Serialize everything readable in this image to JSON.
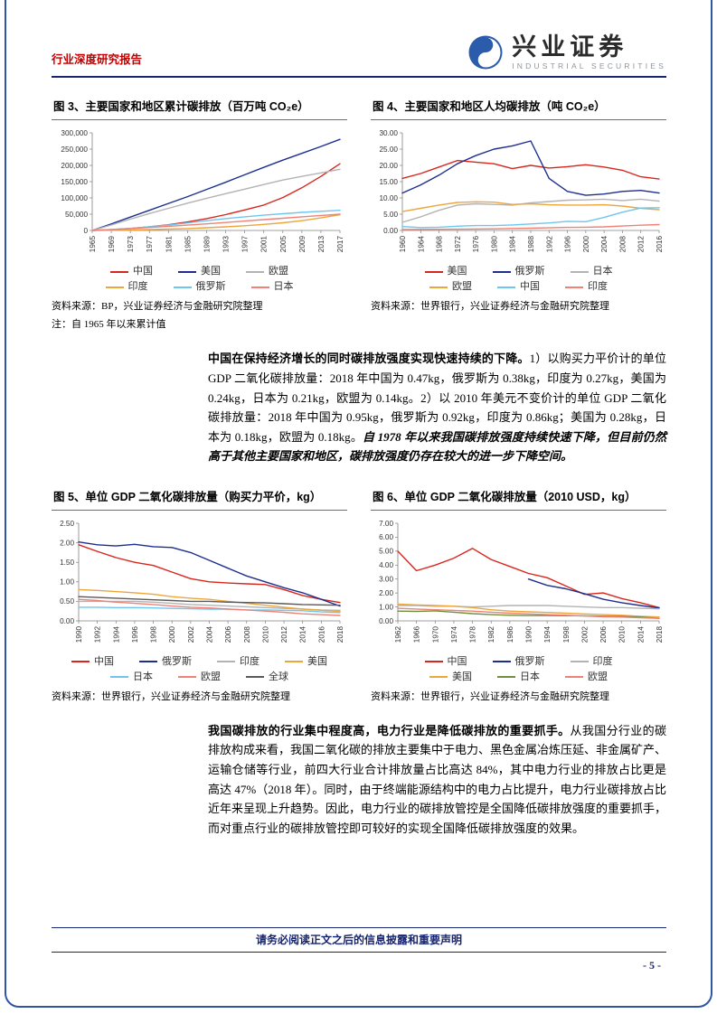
{
  "header": {
    "report_type": "行业深度研究报告",
    "brand_cn": "兴业证券",
    "brand_en": "INDUSTRIAL SECURITIES"
  },
  "colors": {
    "accent_red": "#c00000",
    "navy": "#17246e",
    "page_border_blue": "#2f55a4"
  },
  "paragraphs": [
    {
      "segments": [
        {
          "text": "中国在保持经济增长的同时碳排放强度实现快速持续的下降。",
          "bold": true
        },
        {
          "text": "1）以购买力平价计的单位 GDP 二氧化碳排放量：2018 年中国为 0.47kg，俄罗斯为 0.38kg，印度为 0.27kg，美国为 0.24kg，日本为 0.21kg，欧盟为 0.14kg。2）以 2010 年美元不变价计的单位 GDP 二氧化碳排放量：2018 年中国为 0.95kg，俄罗斯为 0.92kg，印度为 0.86kg；美国为 0.28kg，日本为 0.18kg，欧盟为 0.18kg。",
          "bold": false
        },
        {
          "text": "自 1978 年以来我国碳排放强度持续快速下降，但目前仍然高于其他主要国家和地区，碳排放强度仍存在较大的进一步下降空间。",
          "bold": true,
          "italic": true
        }
      ]
    },
    {
      "segments": [
        {
          "text": "我国碳排放的行业集中程度高，电力行业是降低碳排放的重要抓手。",
          "bold": true
        },
        {
          "text": "从我国分行业的碳排放构成来看，我国二氧化碳的排放主要集中于电力、黑色金属冶炼压延、非金属矿产、运输仓储等行业，前四大行业合计排放量占比高达 84%，其中电力行业的排放占比更是高达 47%（2018 年）。同时，由于终端能源结构中的电力占比提升，电力行业碳排放占比近年来呈现上升趋势。因此，电力行业的碳排放管控是全国降低碳排放强度的重要抓手，而对重点行业的碳排放管控即可较好的实现全国降低碳排放强度的效果。",
          "bold": false
        }
      ]
    }
  ],
  "footer": {
    "disclaimer": "请务必阅读正文之后的信息披露和重要声明",
    "page_number": "- 5 -"
  },
  "chart_data": [
    {
      "type": "line",
      "title": "图 3、主要国家和地区累计碳排放（百万吨 CO₂e）",
      "source": "资料来源：BP，兴业证券经济与金融研究院整理",
      "note": "注：自 1965 年以来累计值",
      "x_ticks": [
        "1965",
        "1969",
        "1973",
        "1977",
        "1981",
        "1985",
        "1989",
        "1993",
        "1997",
        "2001",
        "2005",
        "2009",
        "2013",
        "2017"
      ],
      "ylim": [
        0,
        300000
      ],
      "yticks": [
        0,
        50000,
        100000,
        150000,
        200000,
        250000,
        300000
      ],
      "ytick_format": "comma",
      "series": [
        {
          "name": "中国",
          "color": "#d9261c",
          "values": [
            0,
            2500,
            6000,
            11000,
            17500,
            26000,
            36500,
            48500,
            63000,
            78000,
            101000,
            131000,
            166000,
            205000
          ]
        },
        {
          "name": "美国",
          "color": "#1d2f8e",
          "values": [
            0,
            20000,
            41000,
            62000,
            83000,
            104000,
            126000,
            148000,
            171000,
            194000,
            216000,
            237000,
            258000,
            280000
          ]
        },
        {
          "name": "欧盟",
          "color": "#b3b3b3",
          "values": [
            0,
            17000,
            35000,
            52000,
            68000,
            84000,
            99000,
            113000,
            127000,
            141000,
            155000,
            166000,
            177000,
            188000
          ]
        },
        {
          "name": "印度",
          "color": "#eda63c",
          "values": [
            0,
            700,
            1600,
            2700,
            4100,
            5900,
            8200,
            11000,
            14500,
            18500,
            23500,
            30000,
            38500,
            48500
          ]
        },
        {
          "name": "俄罗斯",
          "color": "#6ec6f0",
          "values": [
            0,
            2800,
            6500,
            11000,
            16500,
            23000,
            30000,
            36500,
            42000,
            47000,
            51500,
            55500,
            59000,
            62000
          ]
        },
        {
          "name": "日本",
          "color": "#ee8276",
          "values": [
            0,
            2600,
            5800,
            9200,
            12800,
            16400,
            20200,
            24400,
            28800,
            33200,
            37600,
            42000,
            46200,
            50000
          ]
        }
      ],
      "legend_rows": [
        [
          "中国",
          "美国",
          "欧盟"
        ],
        [
          "印度",
          "俄罗斯",
          "日本"
        ]
      ]
    },
    {
      "type": "line",
      "title": "图 4、主要国家和地区人均碳排放（吨 CO₂e）",
      "source": "资料来源：世界银行，兴业证券经济与金融研究院整理",
      "x_ticks": [
        "1960",
        "1964",
        "1968",
        "1972",
        "1976",
        "1980",
        "1984",
        "1988",
        "1992",
        "1996",
        "2000",
        "2004",
        "2008",
        "2012",
        "2016"
      ],
      "ylim": [
        0,
        30
      ],
      "yticks": [
        0,
        5,
        10,
        15,
        20,
        25,
        30
      ],
      "ytick_format": "2dp",
      "series": [
        {
          "name": "美国",
          "color": "#d9261c",
          "values": [
            16,
            17.5,
            19.5,
            21.5,
            21,
            20.5,
            19,
            20,
            19.2,
            19.6,
            20.2,
            19.5,
            18.5,
            16.5,
            15.8
          ]
        },
        {
          "name": "俄罗斯",
          "color": "#1d2f8e",
          "values": [
            11.5,
            14,
            17,
            20.5,
            23,
            25,
            26,
            27.5,
            16,
            12,
            10.8,
            11.2,
            12,
            12.3,
            11.5
          ]
        },
        {
          "name": "日本",
          "color": "#b3b3b3",
          "values": [
            2.5,
            4.2,
            6.2,
            7.8,
            8.2,
            8.0,
            7.8,
            8.5,
            8.9,
            9.3,
            9.4,
            9.6,
            9.2,
            9.6,
            9.0
          ]
        },
        {
          "name": "欧盟",
          "color": "#eda63c",
          "values": [
            5.8,
            6.8,
            7.8,
            8.6,
            8.8,
            8.7,
            8.0,
            8.2,
            7.9,
            7.8,
            7.8,
            7.9,
            7.5,
            6.8,
            6.4
          ]
        },
        {
          "name": "中国",
          "color": "#6ec6f0",
          "values": [
            1.2,
            0.9,
            1.0,
            1.3,
            1.5,
            1.5,
            1.7,
            2.0,
            2.3,
            2.8,
            2.7,
            4.0,
            5.6,
            6.9,
            7.0
          ]
        },
        {
          "name": "印度",
          "color": "#ee8276",
          "values": [
            0.3,
            0.32,
            0.35,
            0.4,
            0.45,
            0.5,
            0.6,
            0.7,
            0.8,
            0.95,
            1.0,
            1.1,
            1.35,
            1.6,
            1.8
          ]
        }
      ],
      "legend_rows": [
        [
          "美国",
          "俄罗斯",
          "日本"
        ],
        [
          "欧盟",
          "中国",
          "印度"
        ]
      ]
    },
    {
      "type": "line",
      "title": "图 5、单位 GDP 二氧化碳排放量（购买力平价，kg）",
      "source": "资料来源：世界银行，兴业证券经济与金融研究院整理",
      "x_ticks": [
        "1990",
        "1992",
        "1994",
        "1996",
        "1998",
        "2000",
        "2002",
        "2004",
        "2006",
        "2008",
        "2010",
        "2012",
        "2014",
        "2016",
        "2018"
      ],
      "ylim": [
        0,
        2.5
      ],
      "yticks": [
        0,
        0.5,
        1.0,
        1.5,
        2.0,
        2.5
      ],
      "ytick_format": "2dp",
      "series": [
        {
          "name": "中国",
          "color": "#d9261c",
          "values": [
            1.95,
            1.78,
            1.62,
            1.5,
            1.42,
            1.25,
            1.08,
            1.0,
            0.97,
            0.95,
            0.93,
            0.8,
            0.65,
            0.55,
            0.47
          ]
        },
        {
          "name": "俄罗斯",
          "color": "#1d2f8e",
          "values": [
            2.02,
            1.95,
            1.92,
            1.96,
            1.9,
            1.88,
            1.75,
            1.55,
            1.35,
            1.15,
            1.0,
            0.85,
            0.72,
            0.55,
            0.38
          ]
        },
        {
          "name": "印度",
          "color": "#b3b3b3",
          "values": [
            0.5,
            0.5,
            0.5,
            0.5,
            0.48,
            0.45,
            0.42,
            0.4,
            0.38,
            0.36,
            0.34,
            0.32,
            0.3,
            0.28,
            0.27
          ]
        },
        {
          "name": "美国",
          "color": "#eda63c",
          "values": [
            0.8,
            0.78,
            0.75,
            0.72,
            0.68,
            0.62,
            0.58,
            0.55,
            0.5,
            0.45,
            0.4,
            0.35,
            0.3,
            0.27,
            0.24
          ]
        },
        {
          "name": "日本",
          "color": "#6ec6f0",
          "values": [
            0.35,
            0.35,
            0.34,
            0.34,
            0.33,
            0.32,
            0.31,
            0.3,
            0.3,
            0.28,
            0.28,
            0.27,
            0.26,
            0.23,
            0.21
          ]
        },
        {
          "name": "欧盟",
          "color": "#ee8276",
          "values": [
            0.55,
            0.52,
            0.48,
            0.45,
            0.42,
            0.38,
            0.35,
            0.33,
            0.3,
            0.28,
            0.25,
            0.22,
            0.18,
            0.16,
            0.14
          ]
        },
        {
          "name": "全球",
          "color": "#595959",
          "values": [
            0.62,
            0.6,
            0.58,
            0.56,
            0.54,
            0.52,
            0.5,
            0.5,
            0.48,
            0.47,
            0.46,
            0.44,
            0.42,
            0.41,
            0.4
          ]
        }
      ],
      "legend_rows": [
        [
          "中国",
          "俄罗斯",
          "印度",
          "美国"
        ],
        [
          "日本",
          "欧盟",
          "全球"
        ]
      ]
    },
    {
      "type": "line",
      "title": "图 6、单位 GDP 二氧化碳排放量（2010 USD，kg）",
      "source": "资料来源：世界银行，兴业证券经济与金融研究院整理",
      "x_ticks": [
        "1962",
        "1966",
        "1970",
        "1974",
        "1978",
        "1982",
        "1986",
        "1990",
        "1994",
        "1998",
        "2002",
        "2006",
        "2010",
        "2014",
        "2018"
      ],
      "ylim": [
        0,
        7
      ],
      "yticks": [
        0,
        1,
        2,
        3,
        4,
        5,
        6,
        7
      ],
      "ytick_format": "2dp",
      "series": [
        {
          "name": "中国",
          "color": "#d9261c",
          "values": [
            5.0,
            3.6,
            4.0,
            4.5,
            5.2,
            4.4,
            3.9,
            3.4,
            3.1,
            2.5,
            1.9,
            2.0,
            1.6,
            1.3,
            0.95
          ]
        },
        {
          "name": "俄罗斯",
          "color": "#1d2f8e",
          "values": [
            null,
            null,
            null,
            null,
            null,
            null,
            null,
            3.0,
            2.55,
            2.3,
            1.95,
            1.55,
            1.3,
            1.1,
            0.92
          ]
        },
        {
          "name": "印度",
          "color": "#b3b3b3",
          "values": [
            1.1,
            1.1,
            1.05,
            1.05,
            1.0,
            1.05,
            1.1,
            1.1,
            1.1,
            1.05,
            1.0,
            0.95,
            0.95,
            0.9,
            0.86
          ]
        },
        {
          "name": "美国",
          "color": "#eda63c",
          "values": [
            1.2,
            1.15,
            1.1,
            1.05,
            0.95,
            0.8,
            0.7,
            0.65,
            0.6,
            0.55,
            0.5,
            0.45,
            0.4,
            0.33,
            0.28
          ]
        },
        {
          "name": "日本",
          "color": "#6f8f3f",
          "values": [
            0.7,
            0.68,
            0.72,
            0.62,
            0.52,
            0.45,
            0.4,
            0.38,
            0.38,
            0.37,
            0.36,
            0.34,
            0.32,
            0.28,
            0.18
          ]
        },
        {
          "name": "欧盟",
          "color": "#ee8276",
          "values": [
            0.9,
            0.85,
            0.8,
            0.75,
            0.7,
            0.62,
            0.55,
            0.5,
            0.45,
            0.4,
            0.35,
            0.3,
            0.27,
            0.22,
            0.18
          ]
        }
      ],
      "legend_rows": [
        [
          "中国",
          "俄罗斯",
          "印度"
        ],
        [
          "美国",
          "日本",
          "欧盟"
        ]
      ]
    }
  ]
}
